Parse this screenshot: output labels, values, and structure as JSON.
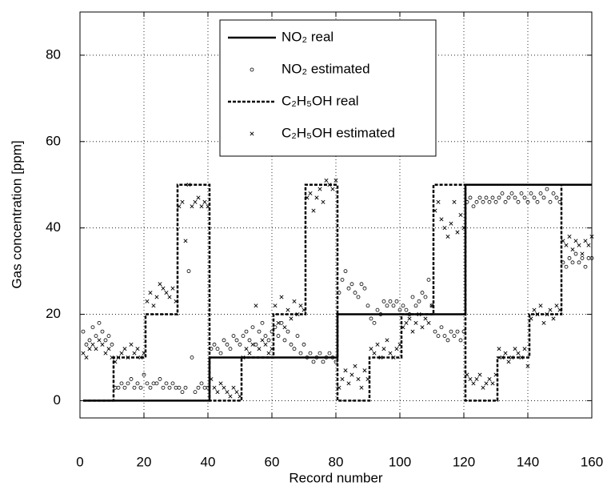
{
  "chart_data": {
    "type": "line",
    "xlabel": "Record number",
    "ylabel": "Gas concentration [ppm]",
    "xlim": [
      0,
      160
    ],
    "ylim": [
      -4,
      90
    ],
    "xticks": [
      0,
      20,
      40,
      60,
      80,
      100,
      120,
      140,
      160
    ],
    "yticks": [
      0,
      20,
      40,
      60,
      80
    ],
    "grid": true,
    "legend": "top",
    "x": [
      1,
      2,
      3,
      4,
      5,
      6,
      7,
      8,
      9,
      10,
      11,
      12,
      13,
      14,
      15,
      16,
      17,
      18,
      19,
      20,
      21,
      22,
      23,
      24,
      25,
      26,
      27,
      28,
      29,
      30,
      31,
      32,
      33,
      34,
      35,
      36,
      37,
      38,
      39,
      40,
      41,
      42,
      43,
      44,
      45,
      46,
      47,
      48,
      49,
      50,
      51,
      52,
      53,
      54,
      55,
      56,
      57,
      58,
      59,
      60,
      61,
      62,
      63,
      64,
      65,
      66,
      67,
      68,
      69,
      70,
      71,
      72,
      73,
      74,
      75,
      76,
      77,
      78,
      79,
      80,
      81,
      82,
      83,
      84,
      85,
      86,
      87,
      88,
      89,
      90,
      91,
      92,
      93,
      94,
      95,
      96,
      97,
      98,
      99,
      100,
      101,
      102,
      103,
      104,
      105,
      106,
      107,
      108,
      109,
      110,
      111,
      112,
      113,
      114,
      115,
      116,
      117,
      118,
      119,
      120,
      121,
      122,
      123,
      124,
      125,
      126,
      127,
      128,
      129,
      130,
      131,
      132,
      133,
      134,
      135,
      136,
      137,
      138,
      139,
      140,
      141,
      142,
      143,
      144,
      145,
      146,
      147,
      148,
      149,
      150,
      151,
      152,
      153,
      154,
      155,
      156,
      157,
      158,
      159,
      160
    ],
    "series": [
      {
        "name": "NO₂ real",
        "kind": "line",
        "dash": false,
        "color": "#000000",
        "x": [
          1,
          40.5,
          40.5,
          80.5,
          80.5,
          120.5,
          120.5,
          160
        ],
        "values": [
          0,
          0,
          10,
          10,
          20,
          20,
          50,
          50
        ]
      },
      {
        "name": "NO₂ estimated",
        "kind": "marker",
        "marker": "circle",
        "color": "#000000",
        "values": [
          16,
          13,
          14,
          17,
          15,
          18,
          16,
          14,
          15,
          13,
          3,
          3,
          4,
          3,
          4,
          5,
          3,
          4,
          3,
          6,
          4,
          3,
          4,
          4,
          5,
          3,
          4,
          3,
          4,
          3,
          3,
          2,
          3,
          30,
          10,
          2,
          3,
          4,
          3,
          3,
          12,
          13,
          12,
          11,
          14,
          13,
          12,
          15,
          14,
          13,
          15,
          16,
          14,
          17,
          13,
          16,
          18,
          15,
          14,
          16,
          17,
          15,
          18,
          14,
          16,
          13,
          12,
          15,
          11,
          13,
          10,
          11,
          9,
          10,
          11,
          9,
          10,
          11,
          10,
          9,
          25,
          28,
          30,
          26,
          27,
          25,
          24,
          27,
          26,
          22,
          19,
          18,
          21,
          20,
          23,
          22,
          23,
          22,
          23,
          21,
          22,
          21,
          20,
          24,
          22,
          23,
          25,
          24,
          28,
          22,
          16,
          15,
          17,
          15,
          14,
          16,
          15,
          16,
          14,
          16,
          46,
          47,
          45,
          46,
          47,
          46,
          47,
          46,
          47,
          46,
          47,
          48,
          46,
          47,
          48,
          47,
          46,
          48,
          47,
          46,
          48,
          47,
          46,
          48,
          47,
          49,
          46,
          48,
          47,
          46,
          32,
          31,
          33,
          32,
          34,
          32,
          33,
          31,
          33,
          33
        ]
      },
      {
        "name": "C₂H₅OH real",
        "kind": "line",
        "dash": true,
        "color": "#000000",
        "x": [
          1,
          10.5,
          10.5,
          20.5,
          20.5,
          30.5,
          30.5,
          40.5,
          40.5,
          50.5,
          50.5,
          60.5,
          60.5,
          70.5,
          70.5,
          80.5,
          80.5,
          90.5,
          90.5,
          100.5,
          100.5,
          110.5,
          110.5,
          120.5,
          120.5,
          130.5,
          130.5,
          140.5,
          140.5,
          150.5,
          150.5,
          160
        ],
        "values": [
          0,
          0,
          10,
          10,
          20,
          20,
          50,
          50,
          0,
          0,
          10,
          10,
          20,
          20,
          50,
          50,
          0,
          0,
          10,
          10,
          20,
          20,
          50,
          50,
          0,
          0,
          10,
          10,
          20,
          20,
          50,
          50
        ]
      },
      {
        "name": "C₂H₅OH estimated",
        "kind": "marker",
        "marker": "x",
        "color": "#000000",
        "values": [
          11,
          10,
          12,
          13,
          12,
          14,
          13,
          11,
          12,
          10,
          9,
          10,
          11,
          12,
          10,
          13,
          11,
          12,
          10,
          11,
          23,
          25,
          22,
          24,
          27,
          26,
          25,
          24,
          26,
          23,
          45,
          46,
          37,
          50,
          45,
          46,
          47,
          45,
          46,
          45,
          5,
          3,
          2,
          4,
          3,
          2,
          1,
          3,
          2,
          1,
          10,
          12,
          11,
          13,
          22,
          12,
          14,
          13,
          11,
          12,
          22,
          18,
          24,
          17,
          21,
          19,
          23,
          20,
          22,
          21,
          47,
          48,
          44,
          47,
          49,
          46,
          51,
          50,
          49,
          51,
          3,
          5,
          7,
          4,
          6,
          8,
          5,
          3,
          7,
          5,
          12,
          11,
          13,
          10,
          12,
          14,
          11,
          10,
          12,
          13,
          17,
          18,
          19,
          16,
          18,
          20,
          17,
          19,
          18,
          22,
          44,
          46,
          42,
          40,
          38,
          41,
          46,
          39,
          43,
          40,
          6,
          5,
          4,
          5,
          6,
          3,
          4,
          5,
          4,
          6,
          12,
          10,
          11,
          9,
          10,
          12,
          11,
          10,
          12,
          8,
          19,
          21,
          20,
          22,
          18,
          20,
          21,
          19,
          22,
          21,
          37,
          36,
          38,
          35,
          37,
          36,
          34,
          37,
          36,
          38
        ]
      }
    ]
  }
}
